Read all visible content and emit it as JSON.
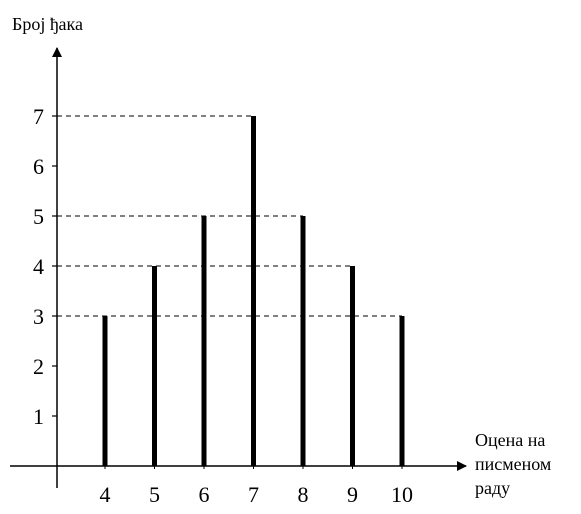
{
  "chart_data": {
    "type": "bar",
    "title": "",
    "ylabel": "Број ђака",
    "xlabel_lines": [
      "Оцена на",
      "писменом",
      "раду"
    ],
    "categories": [
      "4",
      "5",
      "6",
      "7",
      "8",
      "9",
      "10"
    ],
    "values": [
      3,
      4,
      5,
      7,
      5,
      4,
      3
    ],
    "yticks": [
      "1",
      "2",
      "3",
      "4",
      "5",
      "6",
      "7"
    ],
    "ylim": [
      0,
      8
    ],
    "grid": false,
    "reference_lines": [
      3,
      4,
      5,
      7
    ],
    "colors": {
      "bars": "#000000",
      "axes": "#000000",
      "guides": "#000000"
    }
  }
}
